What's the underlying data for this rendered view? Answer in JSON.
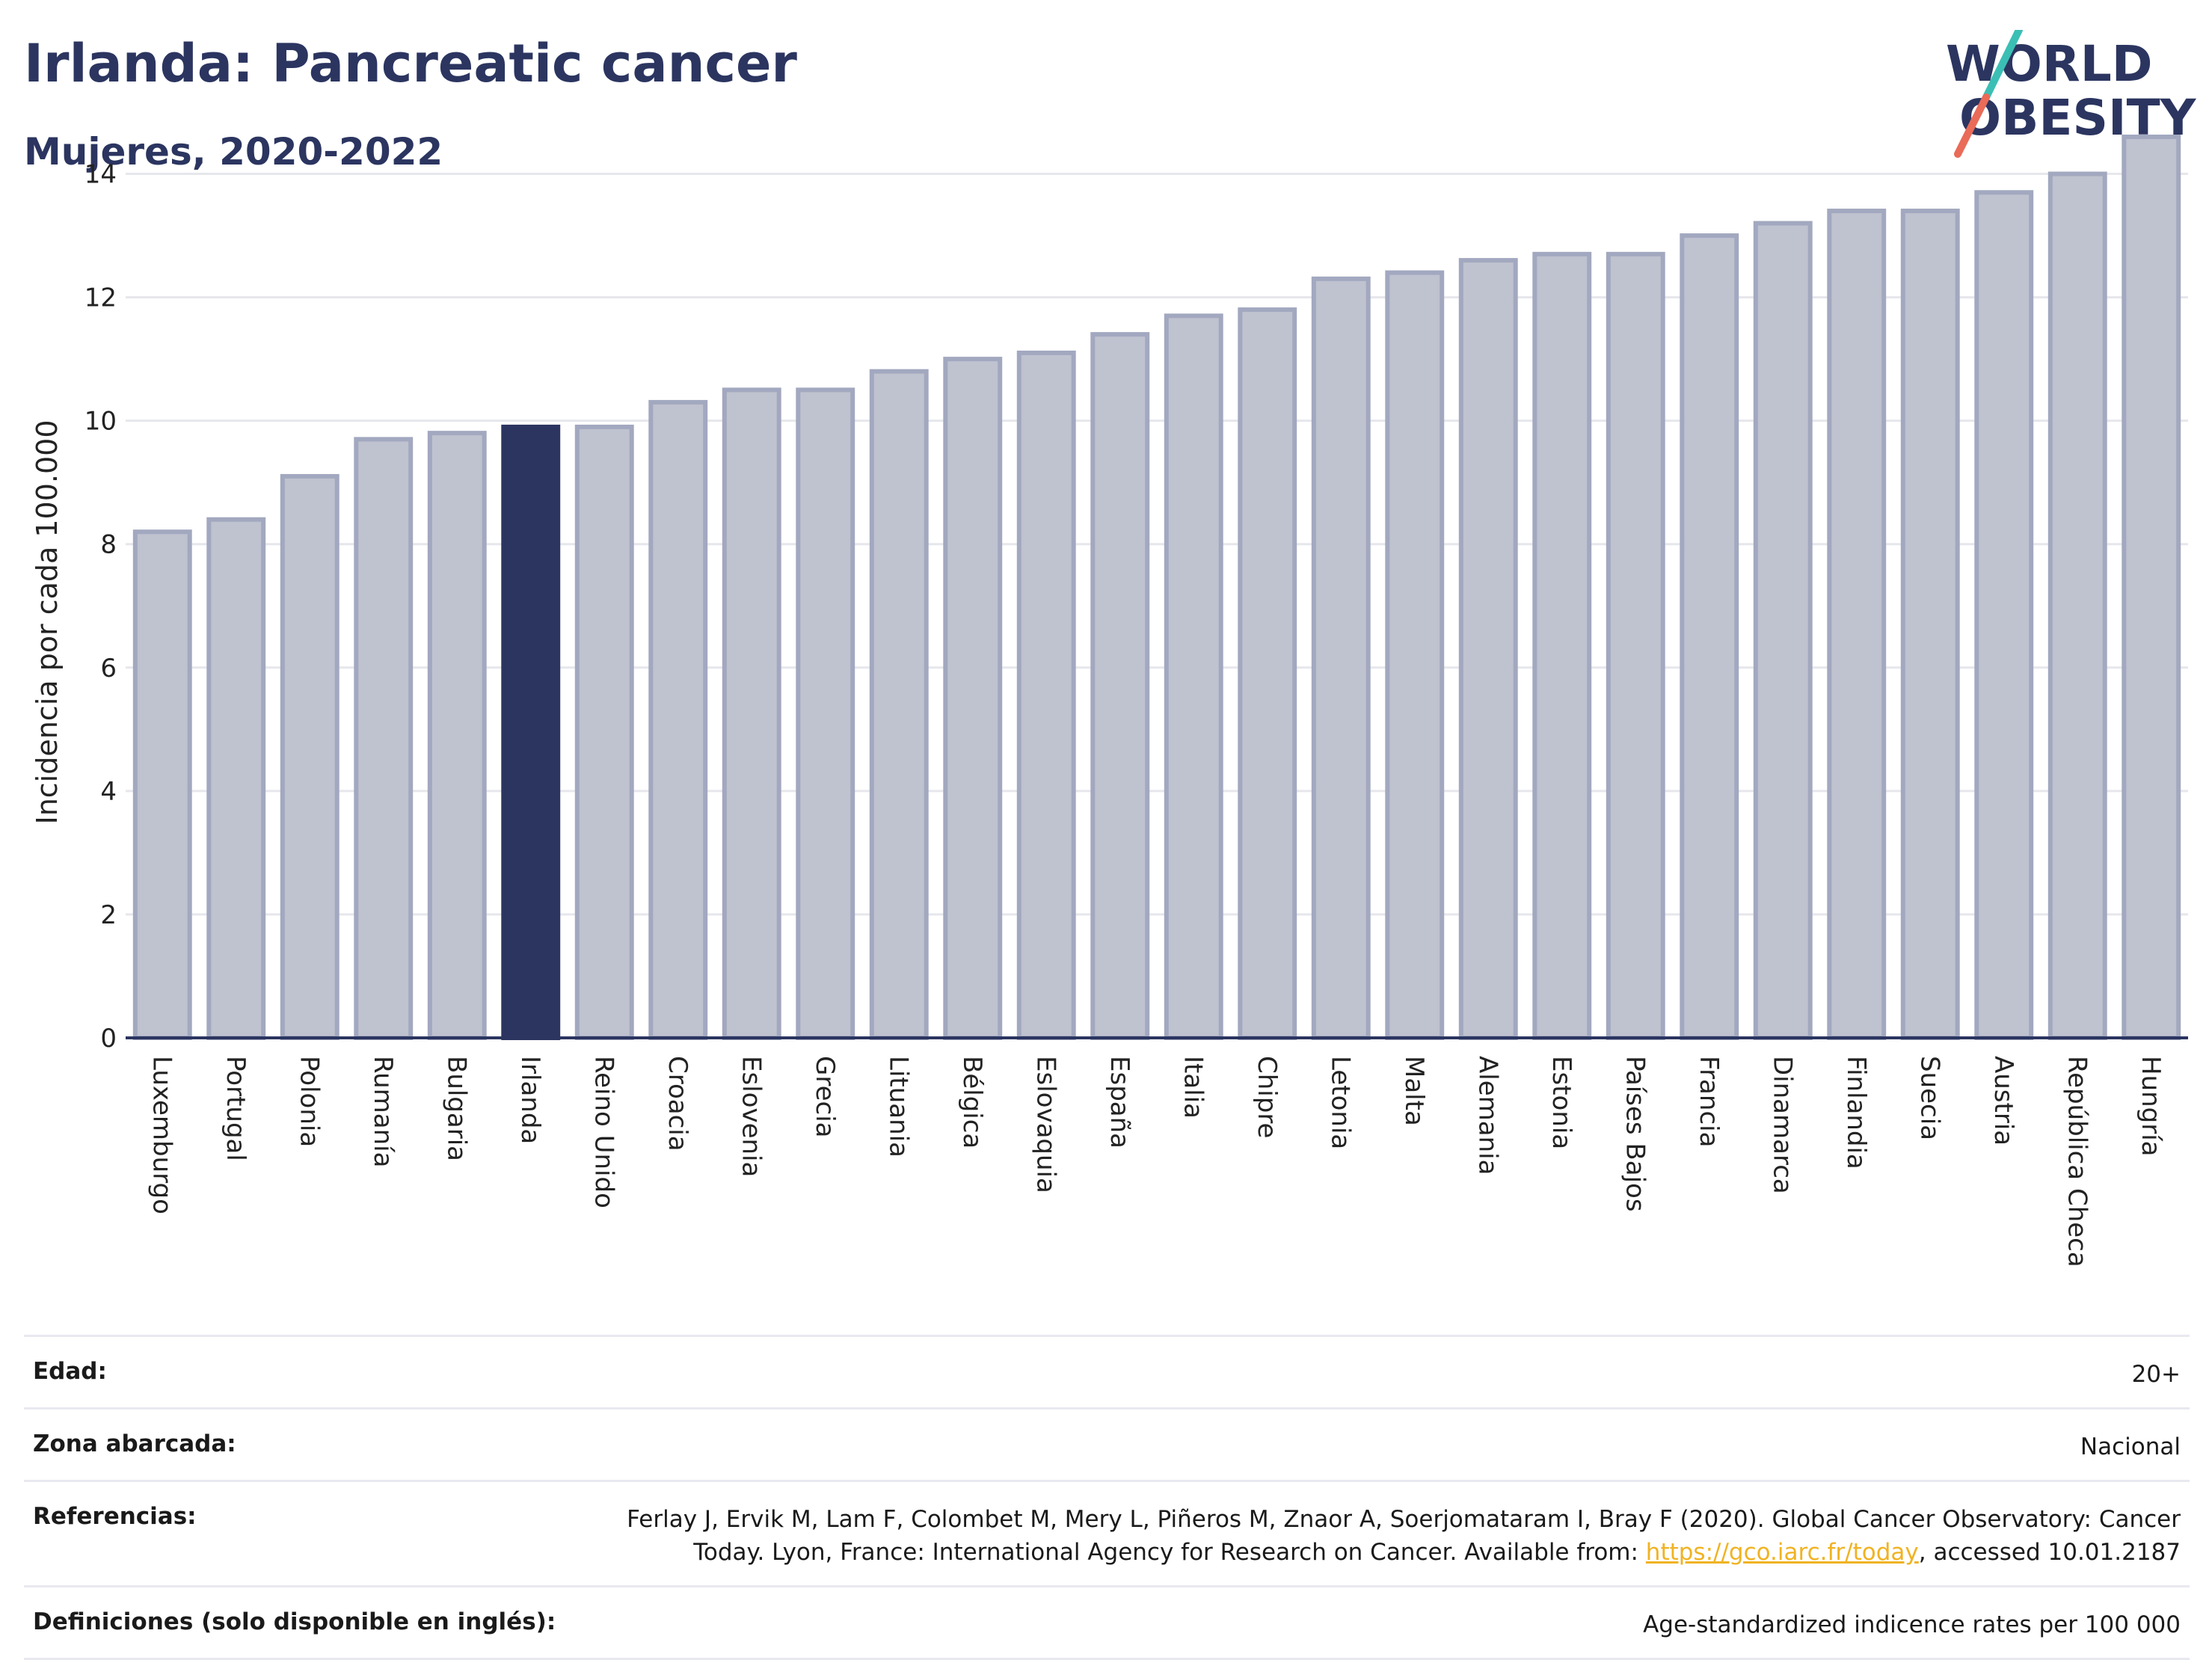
{
  "header": {
    "title": "Irlanda: Pancreatic cancer",
    "subtitle": "Mujeres, 2020-2022"
  },
  "logo": {
    "line1": "WORLD",
    "line2": "OBESITY"
  },
  "chart_data": {
    "type": "bar",
    "ylabel": "Incidencia por cada 100.000",
    "ylim": [
      0,
      15
    ],
    "yticks": [
      0,
      2,
      4,
      6,
      8,
      10,
      12,
      14
    ],
    "grid": true,
    "highlight": "Irlanda",
    "colors": {
      "bar": "#bfc2cf",
      "bar_edge": "#a2a8bf",
      "highlight": "#2b3560"
    },
    "categories": [
      "Luxemburgo",
      "Portugal",
      "Polonia",
      "Rumanía",
      "Bulgaria",
      "Irlanda",
      "Reino Unido",
      "Croacia",
      "Eslovenia",
      "Grecia",
      "Lituania",
      "Bélgica",
      "Eslovaquia",
      "España",
      "Italia",
      "Chipre",
      "Letonia",
      "Malta",
      "Alemania",
      "Estonia",
      "Países Bajos",
      "Francia",
      "Dinamarca",
      "Finlandia",
      "Suecia",
      "Austria",
      "República Checa",
      "Hungría"
    ],
    "values": [
      8.2,
      8.4,
      9.1,
      9.7,
      9.8,
      9.9,
      9.9,
      10.3,
      10.5,
      10.5,
      10.8,
      11.0,
      11.1,
      11.4,
      11.7,
      11.8,
      12.3,
      12.4,
      12.6,
      12.7,
      12.7,
      13.0,
      13.2,
      13.4,
      13.4,
      13.7,
      14.0,
      14.6
    ]
  },
  "info": {
    "rows": [
      {
        "key": "Edad:",
        "value": "20+"
      },
      {
        "key": "Zona abarcada:",
        "value": "Nacional"
      },
      {
        "key": "Referencias:",
        "value_pre": "Ferlay J, Ervik M, Lam F, Colombet M, Mery L, Piñeros M, Znaor A, Soerjomataram I, Bray F (2020). Global Cancer Observatory: Cancer Today. Lyon, France: International Agency for Research on Cancer. Available from: ",
        "link": "https://gco.iarc.fr/today",
        "value_post": ", accessed 10.01.2187"
      },
      {
        "key": "Definiciones (solo disponible en inglés):",
        "value": "Age-standardized indicence rates per 100 000"
      }
    ]
  }
}
